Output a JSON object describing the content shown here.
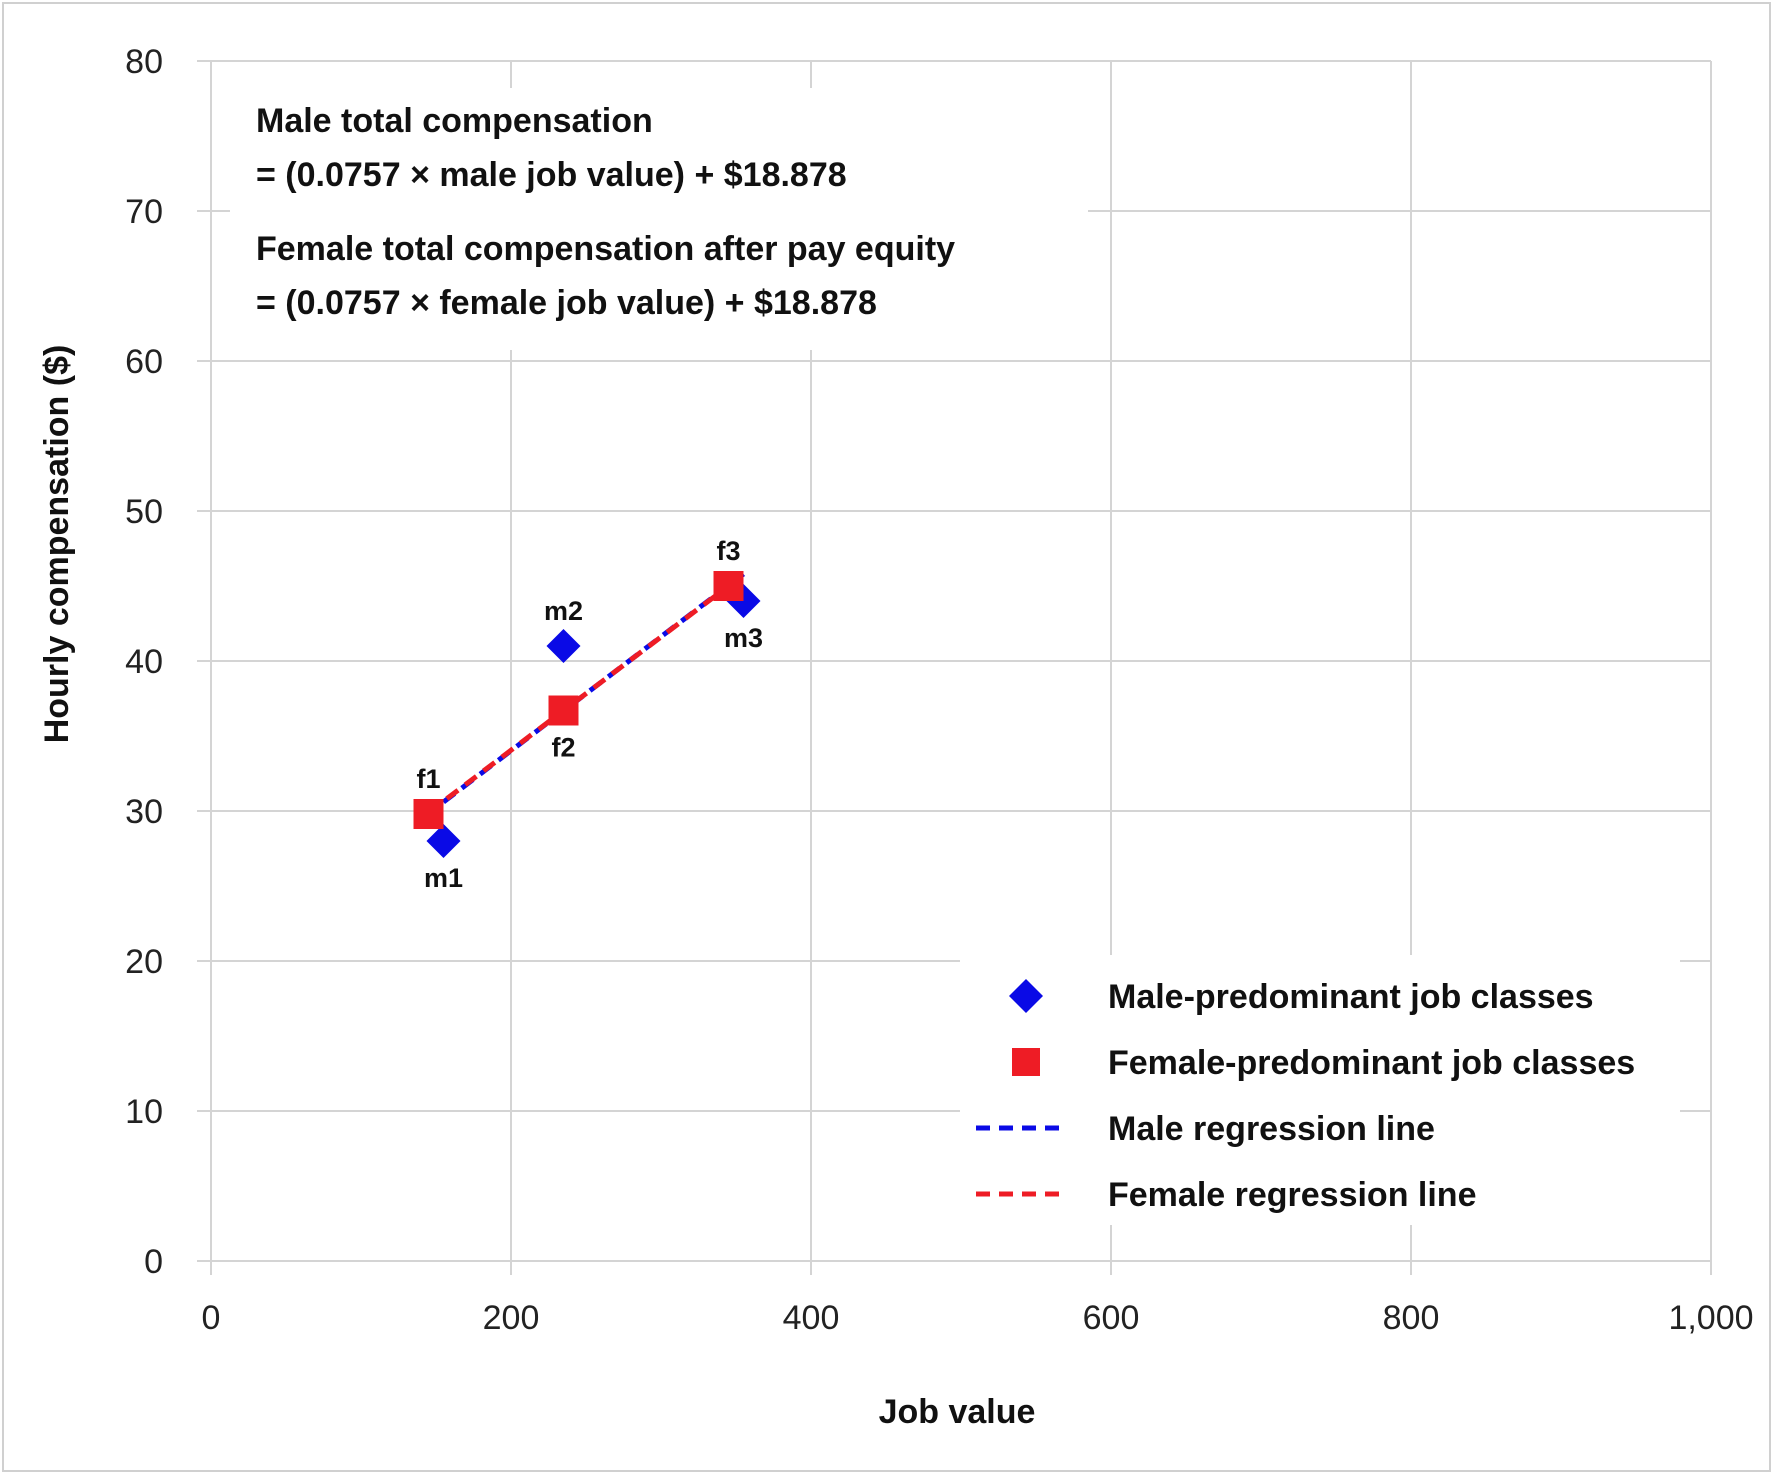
{
  "chart_data": {
    "type": "scatter",
    "xlabel": "Job value",
    "ylabel": "Hourly compensation ($)",
    "xlim": [
      0,
      1000
    ],
    "ylim": [
      0,
      80
    ],
    "x_ticks": [
      0,
      200,
      400,
      600,
      800,
      1000
    ],
    "x_tick_labels": [
      "0",
      "200",
      "400",
      "600",
      "800",
      "1,000"
    ],
    "y_ticks": [
      0,
      10,
      20,
      30,
      40,
      50,
      60,
      70,
      80
    ],
    "y_tick_labels": [
      "0",
      "10",
      "20",
      "30",
      "40",
      "50",
      "60",
      "70",
      "80"
    ],
    "grid": true,
    "legend_position": "bottom-right",
    "annotations": [
      "Male total compensation",
      "= (0.0757 × male job value) + $18.878",
      "Female total compensation after pay equity",
      "= (0.0757 × female job value) + $18.878"
    ],
    "series": [
      {
        "name": "Male-predominant job classes",
        "kind": "points",
        "marker": "diamond",
        "color": "#0a0ae6",
        "points": [
          {
            "label": "m1",
            "x": 155,
            "y": 28,
            "label_pos": "below"
          },
          {
            "label": "m2",
            "x": 235,
            "y": 41,
            "label_pos": "above"
          },
          {
            "label": "m3",
            "x": 355,
            "y": 44,
            "label_pos": "below"
          }
        ]
      },
      {
        "name": "Female-predominant job classes",
        "kind": "points",
        "marker": "square",
        "color": "#ee1c25",
        "points": [
          {
            "label": "f1",
            "x": 145,
            "y": 29.8,
            "label_pos": "above"
          },
          {
            "label": "f2",
            "x": 235,
            "y": 36.7,
            "label_pos": "below"
          },
          {
            "label": "f3",
            "x": 345,
            "y": 45,
            "label_pos": "above"
          }
        ]
      },
      {
        "name": "Male regression line",
        "kind": "line",
        "dash": true,
        "color": "#0a0ae6",
        "x": [
          155,
          355
        ],
        "y": [
          30.6,
          45.8
        ]
      },
      {
        "name": "Female regression line",
        "kind": "line",
        "dash": true,
        "color": "#ee1c25",
        "x": [
          145,
          345
        ],
        "y": [
          29.9,
          45.0
        ]
      }
    ]
  }
}
